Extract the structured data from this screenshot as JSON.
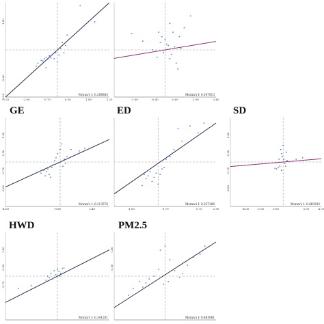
{
  "chart_data": [
    {
      "type": "scatter",
      "title": "",
      "moran_label": "Moran's I: 0.288883",
      "xlim": [
        -3.2,
        3.2
      ],
      "ylim": [
        -3.2,
        3.2
      ],
      "x_ticks": [
        "-3.20",
        "-2.00",
        "-0.70",
        "0.50",
        "1.80",
        "3.20"
      ],
      "y_ticks": [
        "3.20",
        "1.80",
        "0.50",
        "-0.70",
        "-2.00",
        "-3.20"
      ],
      "y_ticks_visible": [
        false,
        true,
        false,
        false,
        true,
        true
      ],
      "line": {
        "slope": 1.0,
        "intercept": 0.0
      },
      "points": [
        [
          -1.2,
          -0.9
        ],
        [
          -1.0,
          -0.7
        ],
        [
          -0.9,
          -0.75
        ],
        [
          -0.8,
          -0.6
        ],
        [
          -0.7,
          -0.5
        ],
        [
          -0.6,
          -0.65
        ],
        [
          -0.5,
          -0.4
        ],
        [
          -0.4,
          -0.55
        ],
        [
          -0.3,
          -0.3
        ],
        [
          -0.2,
          -0.6
        ],
        [
          -0.1,
          -0.2
        ],
        [
          0.0,
          -0.8
        ],
        [
          0.1,
          -0.35
        ],
        [
          0.2,
          0.1
        ],
        [
          0.3,
          0.5
        ],
        [
          0.5,
          0.3
        ],
        [
          0.6,
          1.0
        ],
        [
          1.4,
          3.0
        ],
        [
          2.3,
          1.9
        ],
        [
          -0.7,
          -1.2
        ],
        [
          -1.3,
          -1.1
        ],
        [
          0.4,
          -0.2
        ]
      ]
    },
    {
      "type": "scatter",
      "title": "",
      "moran_label": "Moran's I: 0.107813",
      "xlim": [
        -3.2,
        3.2
      ],
      "ylim": [
        -3.2,
        3.2
      ],
      "x_ticks": [
        "",
        "-1.60",
        "-0.40",
        "0.80",
        "2.00",
        "3.40"
      ],
      "y_ticks": [],
      "y_ticks_visible": [],
      "line": {
        "slope": 0.18,
        "intercept": 0.0
      },
      "points": [
        [
          -0.4,
          1.2
        ],
        [
          -0.2,
          0.9
        ],
        [
          -0.3,
          0.5
        ],
        [
          0.1,
          0.4
        ],
        [
          0.3,
          1.8
        ],
        [
          0.5,
          1.2
        ],
        [
          0.9,
          0.9
        ],
        [
          0.2,
          0.3
        ],
        [
          -0.1,
          -0.2
        ],
        [
          0.4,
          -0.3
        ],
        [
          0.6,
          0.2
        ],
        [
          1.2,
          1.5
        ],
        [
          0.7,
          -0.9
        ],
        [
          0.8,
          -1.3
        ],
        [
          -0.5,
          -0.5
        ],
        [
          -1.4,
          0.6
        ],
        [
          -2.1,
          1.1
        ],
        [
          0.0,
          0.7
        ],
        [
          1.6,
          2.3
        ],
        [
          -0.6,
          -0.1
        ],
        [
          0.3,
          -0.6
        ],
        [
          1.0,
          0.1
        ],
        [
          -0.8,
          0.0
        ]
      ]
    },
    {
      "type": "scatter",
      "title": "GE",
      "moran_label": "Moran's I: 0.213576",
      "xlim": [
        -4.0,
        3.6
      ],
      "ylim": [
        -3.2,
        3.2
      ],
      "x_ticks": [
        "-4.00",
        "",
        "",
        "-0.60",
        "",
        "2.40",
        ""
      ],
      "y_ticks": [
        "",
        "1.80",
        "0.50",
        "-0.70",
        "-2.00",
        ""
      ],
      "y_ticks_visible": [
        false,
        true,
        true,
        true,
        true,
        false
      ],
      "line": {
        "slope": 0.45,
        "intercept": 0.0
      },
      "points": [
        [
          -1.4,
          -0.8
        ],
        [
          -1.2,
          -0.6
        ],
        [
          -1.0,
          -0.7
        ],
        [
          -0.9,
          -0.5
        ],
        [
          -0.8,
          -0.9
        ],
        [
          -0.6,
          -0.4
        ],
        [
          -0.5,
          -0.2
        ],
        [
          -0.4,
          0.1
        ],
        [
          -0.3,
          0.3
        ],
        [
          -0.2,
          0.6
        ],
        [
          0.0,
          0.9
        ],
        [
          0.1,
          1.3
        ],
        [
          0.2,
          -0.3
        ],
        [
          0.3,
          0.2
        ],
        [
          0.5,
          0.4
        ],
        [
          0.8,
          0.9
        ],
        [
          1.4,
          0.8
        ],
        [
          1.8,
          1.0
        ],
        [
          -1.1,
          -1.0
        ],
        [
          -0.7,
          -1.1
        ],
        [
          0.4,
          -0.1
        ]
      ]
    },
    {
      "type": "scatter",
      "title": "ED",
      "moran_label": "Moran's I: 0.357388",
      "xlim": [
        -2.2,
        2.9
      ],
      "ylim": [
        -3.2,
        3.2
      ],
      "x_ticks": [
        "",
        "-1.00",
        "",
        "-0.70",
        "",
        "1.70",
        "2.90"
      ],
      "y_ticks": [],
      "y_ticks_visible": [],
      "line": {
        "slope": 1.0,
        "intercept": -0.1
      },
      "points": [
        [
          -0.7,
          -0.9
        ],
        [
          -0.6,
          -1.2
        ],
        [
          -0.5,
          -1.0
        ],
        [
          -0.4,
          -0.7
        ],
        [
          -0.3,
          -1.4
        ],
        [
          -0.2,
          -1.1
        ],
        [
          -0.1,
          -0.8
        ],
        [
          0.0,
          -1.6
        ],
        [
          0.2,
          -0.5
        ],
        [
          0.4,
          0.2
        ],
        [
          0.6,
          0.4
        ],
        [
          0.8,
          0.9
        ],
        [
          1.0,
          2.4
        ],
        [
          1.6,
          2.6
        ],
        [
          2.0,
          2.1
        ],
        [
          2.3,
          2.8
        ],
        [
          0.3,
          -0.4
        ],
        [
          -0.8,
          -1.7
        ],
        [
          1.2,
          1.5
        ],
        [
          0.1,
          -0.9
        ]
      ]
    },
    {
      "type": "scatter",
      "title": "SD",
      "moran_label": "Moran's I: 0.060292",
      "xlim": [
        -6.5,
        4.7
      ],
      "ylim": [
        -3.2,
        3.2
      ],
      "x_ticks": [
        "",
        "-4.00",
        "-2.00",
        "0.00",
        "",
        "3.00",
        "4.70"
      ],
      "y_ticks": [
        "",
        "1.80",
        "0.50",
        "-0.70",
        "-2.00",
        ""
      ],
      "y_ticks_visible": [
        false,
        true,
        true,
        true,
        true,
        false
      ],
      "line": {
        "slope": 0.05,
        "intercept": 0.0
      },
      "points": [
        [
          -0.3,
          0.9
        ],
        [
          -0.2,
          0.6
        ],
        [
          -0.1,
          0.4
        ],
        [
          0.0,
          1.2
        ],
        [
          0.1,
          0.2
        ],
        [
          0.2,
          -0.1
        ],
        [
          -0.4,
          -0.3
        ],
        [
          -0.6,
          -0.4
        ],
        [
          -0.8,
          -0.5
        ],
        [
          -1.0,
          -0.45
        ],
        [
          0.3,
          -0.3
        ],
        [
          0.5,
          0.1
        ],
        [
          0.4,
          0.7
        ],
        [
          -0.2,
          -0.6
        ],
        [
          1.6,
          0.2
        ],
        [
          2.4,
          0.3
        ],
        [
          -0.5,
          0.2
        ]
      ]
    },
    {
      "type": "scatter",
      "title": "HWD",
      "moran_label": "Moran's I: 0.341201",
      "xlim": [
        -3.2,
        3.2
      ],
      "ylim": [
        -3.2,
        3.2
      ],
      "x_ticks": [],
      "y_ticks": [
        "",
        "1.80",
        "0.50",
        "-0.70",
        "",
        ""
      ],
      "y_ticks_visible": [
        false,
        true,
        true,
        true,
        false,
        false
      ],
      "line": {
        "slope": 0.6,
        "intercept": 0.0
      },
      "points": [
        [
          -0.4,
          0.2
        ],
        [
          -0.2,
          0.4
        ],
        [
          -0.1,
          0.1
        ],
        [
          0.0,
          0.5
        ],
        [
          0.1,
          0.35
        ],
        [
          0.2,
          0.2
        ],
        [
          0.3,
          0.55
        ],
        [
          -0.3,
          -0.2
        ],
        [
          -0.5,
          -0.1
        ],
        [
          -0.6,
          0.0
        ],
        [
          0.15,
          0.0
        ],
        [
          -0.7,
          -0.3
        ],
        [
          -2.4,
          -0.9
        ],
        [
          -1.6,
          -0.7
        ],
        [
          0.4,
          0.6
        ]
      ]
    },
    {
      "type": "scatter",
      "title": "PM2.5",
      "moran_label": "Moran's I: 0.485081",
      "xlim": [
        -3.2,
        3.2
      ],
      "ylim": [
        -3.2,
        3.2
      ],
      "x_ticks": [],
      "y_ticks": [
        "",
        "1.80",
        "0.50",
        "",
        "",
        ""
      ],
      "y_ticks_visible": [
        false,
        true,
        true,
        false,
        false,
        false
      ],
      "line": {
        "slope": 0.75,
        "intercept": 0.1
      },
      "points": [
        [
          -2.0,
          -0.9
        ],
        [
          -1.6,
          -0.4
        ],
        [
          -1.2,
          -0.5
        ],
        [
          -1.0,
          -0.2
        ],
        [
          -0.7,
          0.0
        ],
        [
          -0.3,
          1.9
        ],
        [
          0.0,
          2.2
        ],
        [
          0.3,
          1.2
        ],
        [
          0.6,
          0.4
        ],
        [
          0.9,
          -0.1
        ],
        [
          1.4,
          0.8
        ],
        [
          1.8,
          1.4
        ],
        [
          2.2,
          1.6
        ],
        [
          2.5,
          2.2
        ],
        [
          -0.4,
          0.5
        ],
        [
          0.2,
          -0.4
        ],
        [
          -1.4,
          -0.8
        ],
        [
          -2.3,
          -1.4
        ],
        [
          1.1,
          0.2
        ],
        [
          -0.1,
          -0.6
        ]
      ]
    }
  ]
}
